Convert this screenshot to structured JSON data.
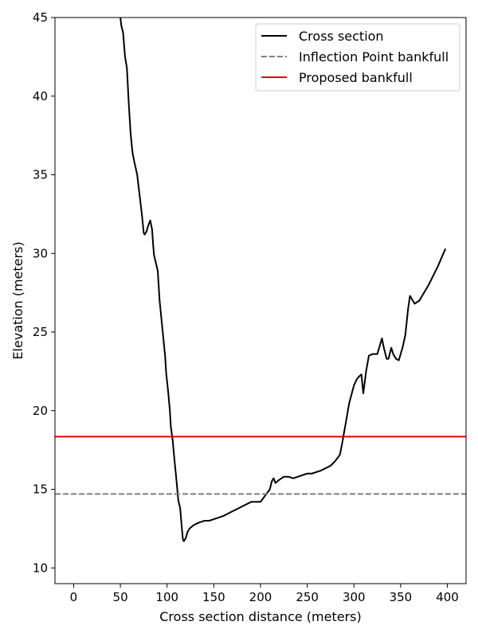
{
  "chart_data": {
    "type": "line",
    "title": "",
    "xlabel": "Cross section distance (meters)",
    "ylabel": "Elevation (meters)",
    "xlim": [
      -20,
      420
    ],
    "ylim": [
      9,
      45
    ],
    "xticks": [
      0,
      50,
      100,
      150,
      200,
      250,
      300,
      350,
      400
    ],
    "yticks": [
      10,
      15,
      20,
      25,
      30,
      35,
      40,
      45
    ],
    "grid": false,
    "legend_position": "top-right",
    "series": [
      {
        "name": "Cross section",
        "color": "#000000",
        "style": "solid",
        "x": [
          50,
          51,
          53,
          55,
          57,
          59,
          61,
          63,
          65,
          68,
          71,
          73,
          75,
          76,
          78,
          80,
          82,
          84,
          85,
          86,
          88,
          90,
          92,
          94,
          96,
          98,
          99,
          101,
          103,
          104,
          106,
          108,
          110,
          112,
          114,
          116,
          117,
          118,
          120,
          121,
          122,
          124,
          126,
          128,
          131,
          135,
          140,
          145,
          150,
          155,
          160,
          170,
          180,
          190,
          200,
          210,
          212,
          214,
          216,
          218,
          220,
          225,
          230,
          235,
          240,
          250,
          255,
          265,
          275,
          280,
          285,
          287,
          290,
          295,
          300,
          303,
          306,
          308,
          310,
          313,
          316,
          320,
          325,
          330,
          332,
          335,
          337,
          340,
          342,
          345,
          348,
          352,
          355,
          358,
          360,
          362,
          365,
          370,
          375,
          380,
          385,
          390,
          395,
          398
        ],
        "y": [
          45,
          44.5,
          44.0,
          42.5,
          41.8,
          39.5,
          37.6,
          36.4,
          35.8,
          35.0,
          33.5,
          32.5,
          31.3,
          31.2,
          31.4,
          31.8,
          32.1,
          31.5,
          30.6,
          29.9,
          29.4,
          28.9,
          27.0,
          25.8,
          24.6,
          23.4,
          22.4,
          21.3,
          20.0,
          19.0,
          18.1,
          16.8,
          15.6,
          14.3,
          13.8,
          12.4,
          11.8,
          11.7,
          11.9,
          12.1,
          12.3,
          12.5,
          12.6,
          12.7,
          12.8,
          12.9,
          13.0,
          13.0,
          13.1,
          13.2,
          13.3,
          13.6,
          13.9,
          14.2,
          14.2,
          15.0,
          15.5,
          15.7,
          15.4,
          15.5,
          15.6,
          15.8,
          15.8,
          15.7,
          15.8,
          16.0,
          16.0,
          16.2,
          16.5,
          16.8,
          17.2,
          17.8,
          18.8,
          20.5,
          21.6,
          22.0,
          22.2,
          22.3,
          21.1,
          22.5,
          23.5,
          23.6,
          23.6,
          24.6,
          24.0,
          23.3,
          23.3,
          24.0,
          23.6,
          23.3,
          23.2,
          24.0,
          24.8,
          26.5,
          27.3,
          27.1,
          26.8,
          27.0,
          27.5,
          28.0,
          28.6,
          29.2,
          29.9,
          30.3
        ]
      },
      {
        "name": "Inflection Point bankfull",
        "color": "#808080",
        "style": "dashed",
        "y_constant": 14.7
      },
      {
        "name": "Proposed bankfull",
        "color": "#e00000",
        "style": "solid",
        "y_constant": 18.35
      }
    ]
  }
}
